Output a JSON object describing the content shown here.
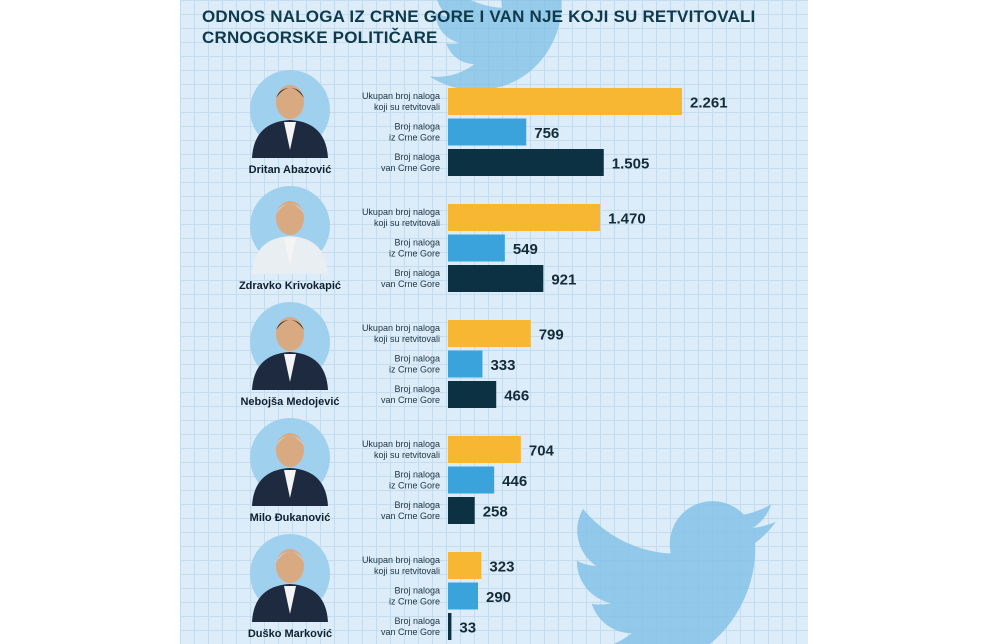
{
  "header": {
    "title_line1": "ODNOS NALOGA IZ CRNE GORE I VAN NJE KOJI SU RETVITOVALI",
    "title_line2": "CRNOGORSKE POLITIČARE"
  },
  "colors": {
    "background": "#dcecf8",
    "grid": "#c4dcee",
    "total": "#f7b733",
    "montenegro": "#3aa3dc",
    "abroad": "#0c3142",
    "bird": "#7fc0e6",
    "title": "#0f3a4d"
  },
  "icons": {
    "decoration": "twitter-bird-icon",
    "portrait": "avatar-icon"
  },
  "chart_data": {
    "type": "bar",
    "orientation": "horizontal",
    "xlim": [
      0,
      2400
    ],
    "series": [
      {
        "key": "total",
        "label_lines": [
          "Ukupan broj naloga",
          "koji su retvitovali"
        ],
        "values": [
          2261,
          1470,
          799,
          704,
          323
        ],
        "value_labels": [
          "2.261",
          "1.470",
          "799",
          "704",
          "323"
        ]
      },
      {
        "key": "montenegro",
        "label_lines": [
          "Broj naloga",
          "iz Crne Gore"
        ],
        "values": [
          756,
          549,
          333,
          446,
          290
        ],
        "value_labels": [
          "756",
          "549",
          "333",
          "446",
          "290"
        ]
      },
      {
        "key": "abroad",
        "label_lines": [
          "Broj naloga",
          "van Crne Gore"
        ],
        "values": [
          1505,
          921,
          466,
          258,
          33
        ],
        "value_labels": [
          "1.505",
          "921",
          "466",
          "258",
          "33"
        ]
      }
    ],
    "categories": [
      "Dritan Abazović",
      "Zdravko Krivokapić",
      "Nebojša Medojević",
      "Milo Đukanović",
      "Duško Marković"
    ],
    "groups": [
      {
        "name": "Dritan Abazović",
        "bars": [
          {
            "series": "total",
            "label_lines": [
              "Ukupan broj naloga",
              "koji su retvitovali"
            ],
            "value": 2261,
            "value_label": "2.261"
          },
          {
            "series": "montenegro",
            "label_lines": [
              "Broj naloga",
              "iz Crne Gore"
            ],
            "value": 756,
            "value_label": "756"
          },
          {
            "series": "abroad",
            "label_lines": [
              "Broj naloga",
              "van Crne Gore"
            ],
            "value": 1505,
            "value_label": "1.505"
          }
        ]
      },
      {
        "name": "Zdravko Krivokapić",
        "bars": [
          {
            "series": "total",
            "label_lines": [
              "Ukupan broj naloga",
              "koji su retvitovali"
            ],
            "value": 1470,
            "value_label": "1.470"
          },
          {
            "series": "montenegro",
            "label_lines": [
              "Broj naloga",
              "iz Crne Gore"
            ],
            "value": 549,
            "value_label": "549"
          },
          {
            "series": "abroad",
            "label_lines": [
              "Broj naloga",
              "van Crne Gore"
            ],
            "value": 921,
            "value_label": "921"
          }
        ]
      },
      {
        "name": "Nebojša Medojević",
        "bars": [
          {
            "series": "total",
            "label_lines": [
              "Ukupan broj naloga",
              "koji su retvitovali"
            ],
            "value": 799,
            "value_label": "799"
          },
          {
            "series": "montenegro",
            "label_lines": [
              "Broj naloga",
              "iz Crne Gore"
            ],
            "value": 333,
            "value_label": "333"
          },
          {
            "series": "abroad",
            "label_lines": [
              "Broj naloga",
              "van Crne Gore"
            ],
            "value": 466,
            "value_label": "466"
          }
        ]
      },
      {
        "name": "Milo Đukanović",
        "bars": [
          {
            "series": "total",
            "label_lines": [
              "Ukupan broj naloga",
              "koji su retvitovali"
            ],
            "value": 704,
            "value_label": "704"
          },
          {
            "series": "montenegro",
            "label_lines": [
              "Broj naloga",
              "iz Crne Gore"
            ],
            "value": 446,
            "value_label": "446"
          },
          {
            "series": "abroad",
            "label_lines": [
              "Broj naloga",
              "van Crne Gore"
            ],
            "value": 258,
            "value_label": "258"
          }
        ]
      },
      {
        "name": "Duško Marković",
        "bars": [
          {
            "series": "total",
            "label_lines": [
              "Ukupan broj naloga",
              "koji su retvitovali"
            ],
            "value": 323,
            "value_label": "323"
          },
          {
            "series": "montenegro",
            "label_lines": [
              "Broj naloga",
              "iz Crne Gore"
            ],
            "value": 290,
            "value_label": "290"
          },
          {
            "series": "abroad",
            "label_lines": [
              "Broj naloga",
              "van Crne Gore"
            ],
            "value": 33,
            "value_label": "33"
          }
        ]
      }
    ]
  }
}
